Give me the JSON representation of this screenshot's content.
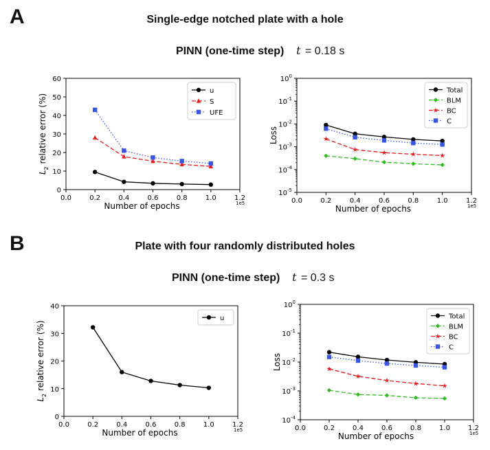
{
  "panel_a": {
    "letter": "A",
    "title": "Single-edge notched plate with a hole",
    "subtitle": "PINN (one-time step)",
    "time_symbol": "t",
    "time_value": "= 0.18 s"
  },
  "panel_b": {
    "letter": "B",
    "title": "Plate with four randomly distributed holes",
    "subtitle": "PINN (one-time step)",
    "time_symbol": "t",
    "time_value": "= 0.3 s"
  },
  "chart_data": [
    {
      "id": "a_error",
      "type": "line",
      "yscale": "linear",
      "xlabel": "Number of epochs",
      "ylabel": "L2 relative error (%)",
      "x_offset_label": "1e5",
      "xlim": [
        0.0,
        1.2
      ],
      "ylim": [
        0,
        60
      ],
      "xticks": [
        "0.0",
        "0.2",
        "0.4",
        "0.6",
        "0.8",
        "1.0",
        "1.2"
      ],
      "yticks": [
        "0",
        "10",
        "20",
        "30",
        "40",
        "50",
        "60"
      ],
      "legend": "top-right",
      "x": [
        0.2,
        0.4,
        0.6,
        0.8,
        1.0
      ],
      "series": [
        {
          "name": "u",
          "values": [
            9.5,
            4.2,
            3.4,
            3.0,
            2.7
          ],
          "color": "#000000",
          "marker": "circle",
          "dash": ""
        },
        {
          "name": "S",
          "values": [
            28,
            17.8,
            15.3,
            13.6,
            12.5
          ],
          "color": "#e41a1c",
          "marker": "triangle",
          "dash": "6,3"
        },
        {
          "name": "UFE",
          "values": [
            43,
            21,
            17.3,
            15.4,
            14.1
          ],
          "color": "#3a55e0",
          "marker": "square",
          "dash": "1.5,2.5"
        }
      ]
    },
    {
      "id": "a_loss",
      "type": "line",
      "yscale": "log",
      "xlabel": "Number of epochs",
      "ylabel": "Loss",
      "x_offset_label": "1e5",
      "xlim": [
        0.0,
        1.2
      ],
      "ylim_exp": [
        -5,
        0
      ],
      "xticks": [
        "0.0",
        "0.2",
        "0.4",
        "0.6",
        "0.8",
        "1.0",
        "1.2"
      ],
      "yticks": [
        {
          "base": "10",
          "exp": "-5"
        },
        {
          "base": "10",
          "exp": "-4"
        },
        {
          "base": "10",
          "exp": "-3"
        },
        {
          "base": "10",
          "exp": "-2"
        },
        {
          "base": "10",
          "exp": "-1"
        },
        {
          "base": "10",
          "exp": "0"
        }
      ],
      "legend": "top-right",
      "x": [
        0.2,
        0.4,
        0.6,
        0.8,
        1.0
      ],
      "series": [
        {
          "name": "Total",
          "values": [
            0.009,
            0.0037,
            0.0027,
            0.0021,
            0.0018
          ],
          "color": "#000000",
          "marker": "circle",
          "dash": ""
        },
        {
          "name": "BLM",
          "values": [
            0.0004,
            0.0003,
            0.00021,
            0.00018,
            0.00016
          ],
          "color": "#33bb22",
          "marker": "diamond",
          "dash": "6,3"
        },
        {
          "name": "BC",
          "values": [
            0.0022,
            0.00075,
            0.00055,
            0.00047,
            0.00041
          ],
          "color": "#e41a1c",
          "marker": "star",
          "dash": "6,3"
        },
        {
          "name": "C",
          "values": [
            0.0062,
            0.0026,
            0.0019,
            0.00145,
            0.00125
          ],
          "color": "#3a55e0",
          "marker": "square",
          "dash": "1.5,2.5"
        }
      ]
    },
    {
      "id": "b_error",
      "type": "line",
      "yscale": "linear",
      "xlabel": "Number of epochs",
      "ylabel": "L2 relative error (%)",
      "x_offset_label": "1e5",
      "xlim": [
        0.0,
        1.2
      ],
      "ylim": [
        0,
        40
      ],
      "xticks": [
        "0.0",
        "0.2",
        "0.4",
        "0.6",
        "0.8",
        "1.0",
        "1.2"
      ],
      "yticks": [
        "0",
        "10",
        "20",
        "30",
        "40"
      ],
      "legend": "top-right",
      "x": [
        0.2,
        0.4,
        0.6,
        0.8,
        1.0
      ],
      "series": [
        {
          "name": "u",
          "values": [
            32.2,
            16.0,
            12.8,
            11.3,
            10.3
          ],
          "color": "#000000",
          "marker": "circle",
          "dash": ""
        }
      ]
    },
    {
      "id": "b_loss",
      "type": "line",
      "yscale": "log",
      "xlabel": "Number of epochs",
      "ylabel": "Loss",
      "x_offset_label": "1e5",
      "xlim": [
        0.0,
        1.2
      ],
      "ylim_exp": [
        -4,
        0
      ],
      "xticks": [
        "0.0",
        "0.2",
        "0.4",
        "0.6",
        "0.8",
        "1.0",
        "1.2"
      ],
      "yticks": [
        {
          "base": "10",
          "exp": "-4"
        },
        {
          "base": "10",
          "exp": "-3"
        },
        {
          "base": "10",
          "exp": "-2"
        },
        {
          "base": "10",
          "exp": "-1"
        },
        {
          "base": "10",
          "exp": "0"
        }
      ],
      "legend": "top-right",
      "x": [
        0.2,
        0.4,
        0.6,
        0.8,
        1.0
      ],
      "series": [
        {
          "name": "Total",
          "values": [
            0.022,
            0.0152,
            0.0118,
            0.0098,
            0.0085
          ],
          "color": "#000000",
          "marker": "circle",
          "dash": ""
        },
        {
          "name": "BLM",
          "values": [
            0.00105,
            0.00075,
            0.0007,
            0.00058,
            0.00055
          ],
          "color": "#33bb22",
          "marker": "diamond",
          "dash": "6,3"
        },
        {
          "name": "BC",
          "values": [
            0.0058,
            0.0032,
            0.0023,
            0.0018,
            0.0015
          ],
          "color": "#e41a1c",
          "marker": "star",
          "dash": "6,3"
        },
        {
          "name": "C",
          "values": [
            0.015,
            0.0112,
            0.0089,
            0.0076,
            0.0066
          ],
          "color": "#3a55e0",
          "marker": "square",
          "dash": "1.5,2.5"
        }
      ]
    }
  ]
}
